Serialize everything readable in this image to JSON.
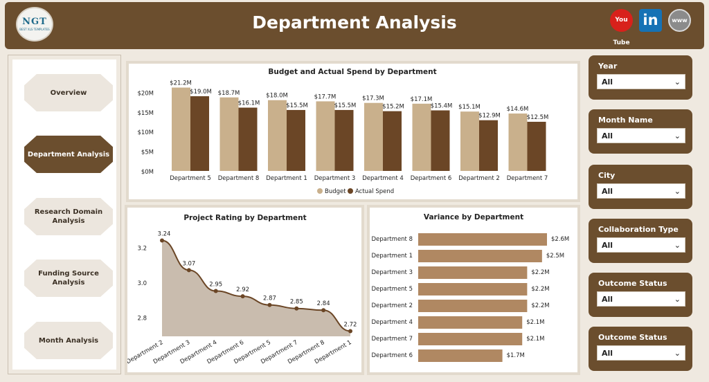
{
  "header": {
    "title": "Department Analysis",
    "logo_text": "NGT",
    "logo_sub": "BEST XLS TEMPLATES",
    "social": {
      "youtube": "You Tube",
      "linkedin": "in",
      "web": "www"
    }
  },
  "nav": {
    "items": [
      {
        "label": "Overview",
        "active": false
      },
      {
        "label": "Department Analysis",
        "active": true
      },
      {
        "label": "Research Domain Analysis",
        "active": false
      },
      {
        "label": "Funding Source Analysis",
        "active": false
      },
      {
        "label": "Month Analysis",
        "active": false
      }
    ]
  },
  "slicers": [
    {
      "label": "Year",
      "value": "All"
    },
    {
      "label": "Month Name",
      "value": "All"
    },
    {
      "label": "City",
      "value": "All"
    },
    {
      "label": "Collaboration Type",
      "value": "All"
    },
    {
      "label": "Outcome Status",
      "value": "All"
    },
    {
      "label": "Outcome Status",
      "value": "All"
    }
  ],
  "colors": {
    "brown": "#6b4e2e",
    "tan": "#c9b08c",
    "dark": "#6b4626",
    "bar": "#b08862",
    "area": "#c9bcae"
  },
  "chart_data": [
    {
      "type": "bar",
      "title": "Budget and Actual Spend by Department",
      "categories": [
        "Department 5",
        "Department 8",
        "Department 1",
        "Department 3",
        "Department 4",
        "Department 6",
        "Department 2",
        "Department 7"
      ],
      "series": [
        {
          "name": "Budget",
          "values": [
            21.2,
            18.7,
            18.0,
            17.7,
            17.3,
            17.1,
            15.1,
            14.6
          ],
          "labels": [
            "$21.2M",
            "$18.7M",
            "$18.0M",
            "$17.7M",
            "$17.3M",
            "$17.1M",
            "$15.1M",
            "$14.6M"
          ]
        },
        {
          "name": "Actual Spend",
          "values": [
            19.0,
            16.1,
            15.5,
            15.5,
            15.2,
            15.4,
            12.9,
            12.5
          ],
          "labels": [
            "$19.0M",
            "$16.1M",
            "$15.5M",
            "$15.5M",
            "$15.2M",
            "$15.4M",
            "$12.9M",
            "$12.5M"
          ]
        }
      ],
      "yticks": [
        "$0M",
        "$5M",
        "$10M",
        "$15M",
        "$20M"
      ],
      "ylim": [
        0,
        22
      ],
      "legend": "bottom"
    },
    {
      "type": "area",
      "title": "Project Rating by Department",
      "categories": [
        "Department 2",
        "Department 3",
        "Department 4",
        "Department 6",
        "Department 5",
        "Department 7",
        "Department 8",
        "Department 1"
      ],
      "values": [
        3.24,
        3.07,
        2.95,
        2.92,
        2.87,
        2.85,
        2.84,
        2.72
      ],
      "labels": [
        "3.24",
        "3.07",
        "2.95",
        "2.92",
        "2.87",
        "2.85",
        "2.84",
        "2.72"
      ],
      "yticks": [
        "2.8",
        "3.0",
        "3.2"
      ],
      "ylim": [
        2.69,
        3.27
      ]
    },
    {
      "type": "bar",
      "orientation": "horizontal",
      "title": "Variance by Department",
      "categories": [
        "Department 8",
        "Department 1",
        "Department 3",
        "Department 5",
        "Department 2",
        "Department 4",
        "Department 7",
        "Department 6"
      ],
      "values": [
        2.6,
        2.5,
        2.2,
        2.2,
        2.2,
        2.1,
        2.1,
        1.7
      ],
      "labels": [
        "$2.6M",
        "$2.5M",
        "$2.2M",
        "$2.2M",
        "$2.2M",
        "$2.1M",
        "$2.1M",
        "$1.7M"
      ]
    }
  ]
}
